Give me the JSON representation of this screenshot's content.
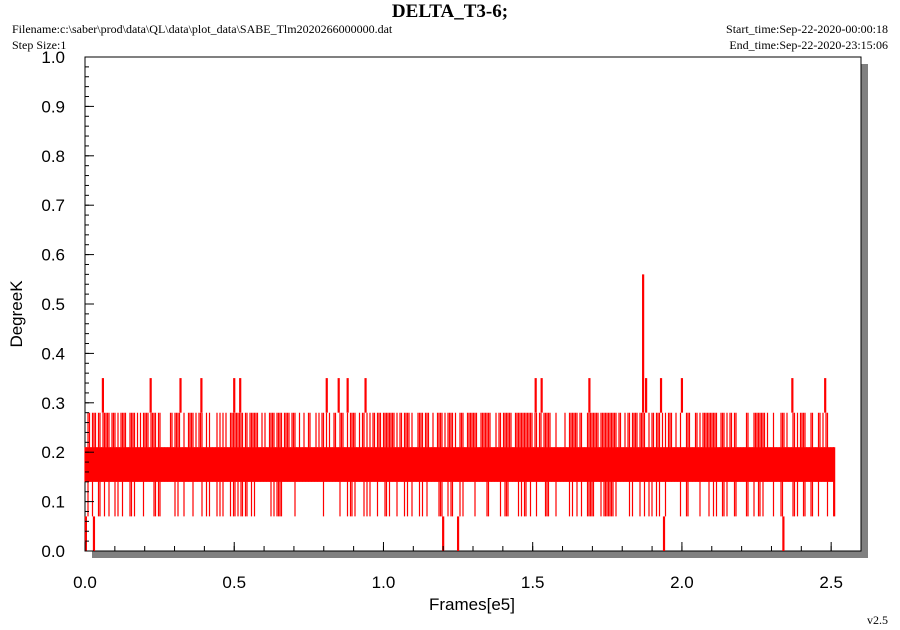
{
  "header": {
    "title": "DELTA_T3-6;",
    "filename": "Filename:c:\\saber\\prod\\data\\QL\\data\\plot_data\\SABE_Tlm2020266000000.dat",
    "step_size": "Step Size:1",
    "start_time": "Start_time:Sep-22-2020-00:00:18",
    "end_time": "End_time:Sep-22-2020-23:15:06"
  },
  "version": "v2.5",
  "colors": {
    "series": "#ff0000",
    "shadow": "#808080",
    "axis": "#000000"
  },
  "chart_data": {
    "type": "line",
    "title": "DELTA_T3-6;",
    "xlabel": "Frames[e5]",
    "ylabel": "DegreeK",
    "xlim": [
      0,
      2.6
    ],
    "ylim": [
      0,
      1.0
    ],
    "xticks": [
      "0.0",
      "0.5",
      "1.0",
      "1.5",
      "2.0",
      "2.5"
    ],
    "yticks": [
      "0.0",
      "0.1",
      "0.2",
      "0.3",
      "0.4",
      "0.5",
      "0.6",
      "0.7",
      "0.8",
      "0.9",
      "1.0"
    ],
    "grid": false,
    "series": [
      {
        "color": "#ff0000",
        "x_range": [
          0,
          2.51
        ],
        "base_band": [
          0.07,
          0.28
        ],
        "core_band": [
          0.14,
          0.21
        ],
        "spikes": [
          {
            "x": 0.003,
            "y": 0.0
          },
          {
            "x": 0.03,
            "y": 0.0
          },
          {
            "x": 0.06,
            "y": 0.35
          },
          {
            "x": 0.22,
            "y": 0.35
          },
          {
            "x": 0.32,
            "y": 0.35
          },
          {
            "x": 0.39,
            "y": 0.35
          },
          {
            "x": 0.5,
            "y": 0.35
          },
          {
            "x": 0.52,
            "y": 0.35
          },
          {
            "x": 0.81,
            "y": 0.35
          },
          {
            "x": 0.85,
            "y": 0.35
          },
          {
            "x": 0.88,
            "y": 0.35
          },
          {
            "x": 0.94,
            "y": 0.35
          },
          {
            "x": 1.2,
            "y": 0.0
          },
          {
            "x": 1.25,
            "y": 0.0
          },
          {
            "x": 1.51,
            "y": 0.35
          },
          {
            "x": 1.53,
            "y": 0.35
          },
          {
            "x": 1.69,
            "y": 0.35
          },
          {
            "x": 1.87,
            "y": 0.56
          },
          {
            "x": 1.88,
            "y": 0.35
          },
          {
            "x": 1.93,
            "y": 0.35
          },
          {
            "x": 1.94,
            "y": 0.0
          },
          {
            "x": 2.0,
            "y": 0.35
          },
          {
            "x": 2.34,
            "y": 0.0
          },
          {
            "x": 2.37,
            "y": 0.35
          },
          {
            "x": 2.48,
            "y": 0.35
          },
          {
            "x": 2.51,
            "y": 0.21
          }
        ]
      }
    ]
  }
}
